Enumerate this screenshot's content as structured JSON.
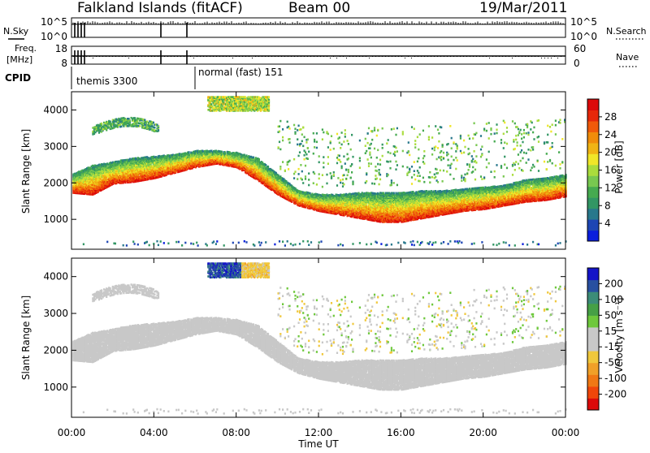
{
  "header": {
    "station": "Falkland Islands (fitACF)",
    "beam": "Beam 00",
    "date": "19/Mar/2011"
  },
  "side_labels": {
    "n_sky": "N.Sky",
    "n_search": "N.Search",
    "freq_line1": "Freq.",
    "freq_line2": "[MHz]",
    "nave": "Nave",
    "cpid": "CPID"
  },
  "cpid_modes": [
    {
      "label": "themis 3300",
      "start_hour": 0.0
    },
    {
      "label": "normal (fast) 151",
      "start_hour": 5.75
    }
  ],
  "noise_axes": {
    "left_ticks": [
      "10^5",
      "10^0"
    ],
    "right_ticks": [
      "10^5",
      "10^0"
    ]
  },
  "freq_axes": {
    "left_ticks": [
      "18",
      "8"
    ],
    "right_ticks": [
      "60",
      "0"
    ]
  },
  "colors": {
    "power_scale": [
      "#0a1edc",
      "#1e46b4",
      "#28788c",
      "#329664",
      "#46aa50",
      "#78c850",
      "#aadc3c",
      "#f0e628",
      "#f0b414",
      "#f08c0a",
      "#f05a0a",
      "#e6280a",
      "#dc0a0a"
    ],
    "velocity_scale": [
      "#1414c8",
      "#2850a0",
      "#3c8c78",
      "#46a046",
      "#6ec83c",
      "#c8c8c8",
      "#c8c8c8",
      "#f0c83c",
      "#f0a028",
      "#f07814",
      "#f0460a",
      "#dc0a0a"
    ],
    "background_scatter": "#c8c8c8"
  },
  "chart_data": [
    {
      "type": "heatmap",
      "name": "power",
      "xlabel": "Time UT",
      "ylabel": "Slant Range [km]",
      "x_ticks": [
        "00:00",
        "04:00",
        "08:00",
        "12:00",
        "16:00",
        "20:00",
        "00:00"
      ],
      "y_ticks": [
        "1000",
        "2000",
        "3000",
        "4000"
      ],
      "xlim": [
        0,
        24
      ],
      "ylim": [
        180,
        4500
      ],
      "colorbar_label": "Power [dB]",
      "colorbar_ticks": [
        "4",
        "8",
        "12",
        "16",
        "20",
        "24",
        "28"
      ],
      "colorbar_range": [
        0,
        32
      ],
      "main_band": {
        "hours": [
          0,
          1,
          2,
          3,
          4,
          5,
          6,
          7,
          8,
          9,
          10,
          11,
          12,
          13,
          14,
          15,
          16,
          17,
          18,
          19,
          20,
          21,
          22,
          23,
          24
        ],
        "lower_km": [
          1700,
          1650,
          1950,
          2000,
          2100,
          2250,
          2400,
          2500,
          2400,
          2050,
          1650,
          1350,
          1200,
          1100,
          1000,
          900,
          900,
          1000,
          1100,
          1200,
          1250,
          1350,
          1450,
          1500,
          1600
        ],
        "upper_km": [
          2200,
          2450,
          2550,
          2650,
          2700,
          2750,
          2850,
          2850,
          2800,
          2650,
          2200,
          1750,
          1650,
          1650,
          1700,
          1700,
          1700,
          1750,
          1750,
          1800,
          1850,
          1900,
          2050,
          2100,
          2200
        ]
      }
    },
    {
      "type": "heatmap",
      "name": "velocity",
      "xlabel": "Time UT",
      "ylabel": "Slant Range [km]",
      "x_ticks": [
        "00:00",
        "04:00",
        "08:00",
        "12:00",
        "16:00",
        "20:00",
        "00:00"
      ],
      "y_ticks": [
        "1000",
        "2000",
        "3000",
        "4000"
      ],
      "xlim": [
        0,
        24
      ],
      "ylim": [
        180,
        4500
      ],
      "colorbar_label": "Velocity [m s⁻¹]",
      "colorbar_ticks": [
        "200",
        "100",
        "50",
        "15",
        "-15",
        "-50",
        "-100",
        "-200"
      ],
      "colorbar_range": [
        -250,
        250
      ]
    }
  ]
}
